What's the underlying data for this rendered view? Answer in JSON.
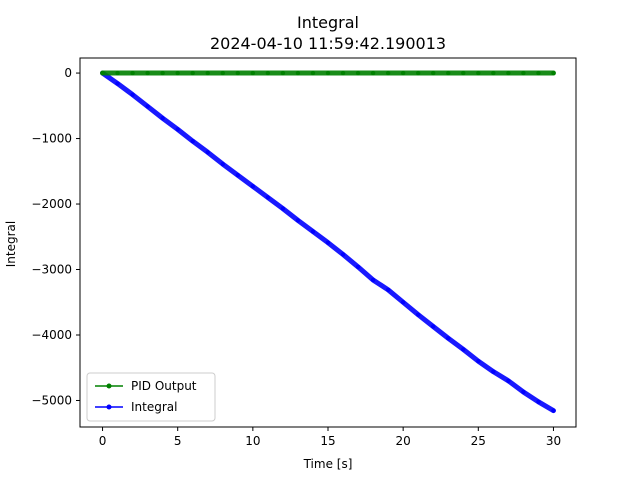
{
  "chart_data": {
    "type": "line",
    "title": "Integral",
    "subtitle": "2024-04-10 11:59:42.190013",
    "xlabel": "Time [s]",
    "ylabel": "Integral",
    "xlim": [
      -1.5,
      31.5
    ],
    "ylim": [
      -5405,
      230
    ],
    "x_ticks": [
      0,
      5,
      10,
      15,
      20,
      25,
      30
    ],
    "x_tick_labels": [
      "0",
      "5",
      "10",
      "15",
      "20",
      "25",
      "30"
    ],
    "y_ticks": [
      0,
      -1000,
      -2000,
      -3000,
      -4000,
      -5000
    ],
    "y_tick_labels": [
      "0",
      "−1000",
      "−2000",
      "−3000",
      "−4000",
      "−5000"
    ],
    "grid": false,
    "legend_position": "lower-left",
    "x": [
      0,
      1,
      2,
      3,
      4,
      5,
      6,
      7,
      8,
      9,
      10,
      11,
      12,
      13,
      14,
      15,
      16,
      17,
      18,
      19,
      20,
      21,
      22,
      23,
      24,
      25,
      26,
      27,
      28,
      29,
      30
    ],
    "series": [
      {
        "name": "PID Output",
        "color": "#008000",
        "values": [
          0,
          0,
          0,
          0,
          0,
          0,
          0,
          0,
          0,
          0,
          0,
          0,
          0,
          0,
          0,
          0,
          0,
          0,
          0,
          0,
          0,
          0,
          0,
          0,
          0,
          0,
          0,
          0,
          0,
          0,
          0
        ]
      },
      {
        "name": "Integral",
        "color": "#0000ff",
        "values": [
          0,
          -160,
          -330,
          -510,
          -690,
          -860,
          -1040,
          -1210,
          -1390,
          -1560,
          -1730,
          -1900,
          -2070,
          -2250,
          -2420,
          -2590,
          -2770,
          -2960,
          -3160,
          -3310,
          -3500,
          -3690,
          -3870,
          -4050,
          -4220,
          -4400,
          -4560,
          -4700,
          -4870,
          -5020,
          -5155
        ]
      }
    ]
  }
}
